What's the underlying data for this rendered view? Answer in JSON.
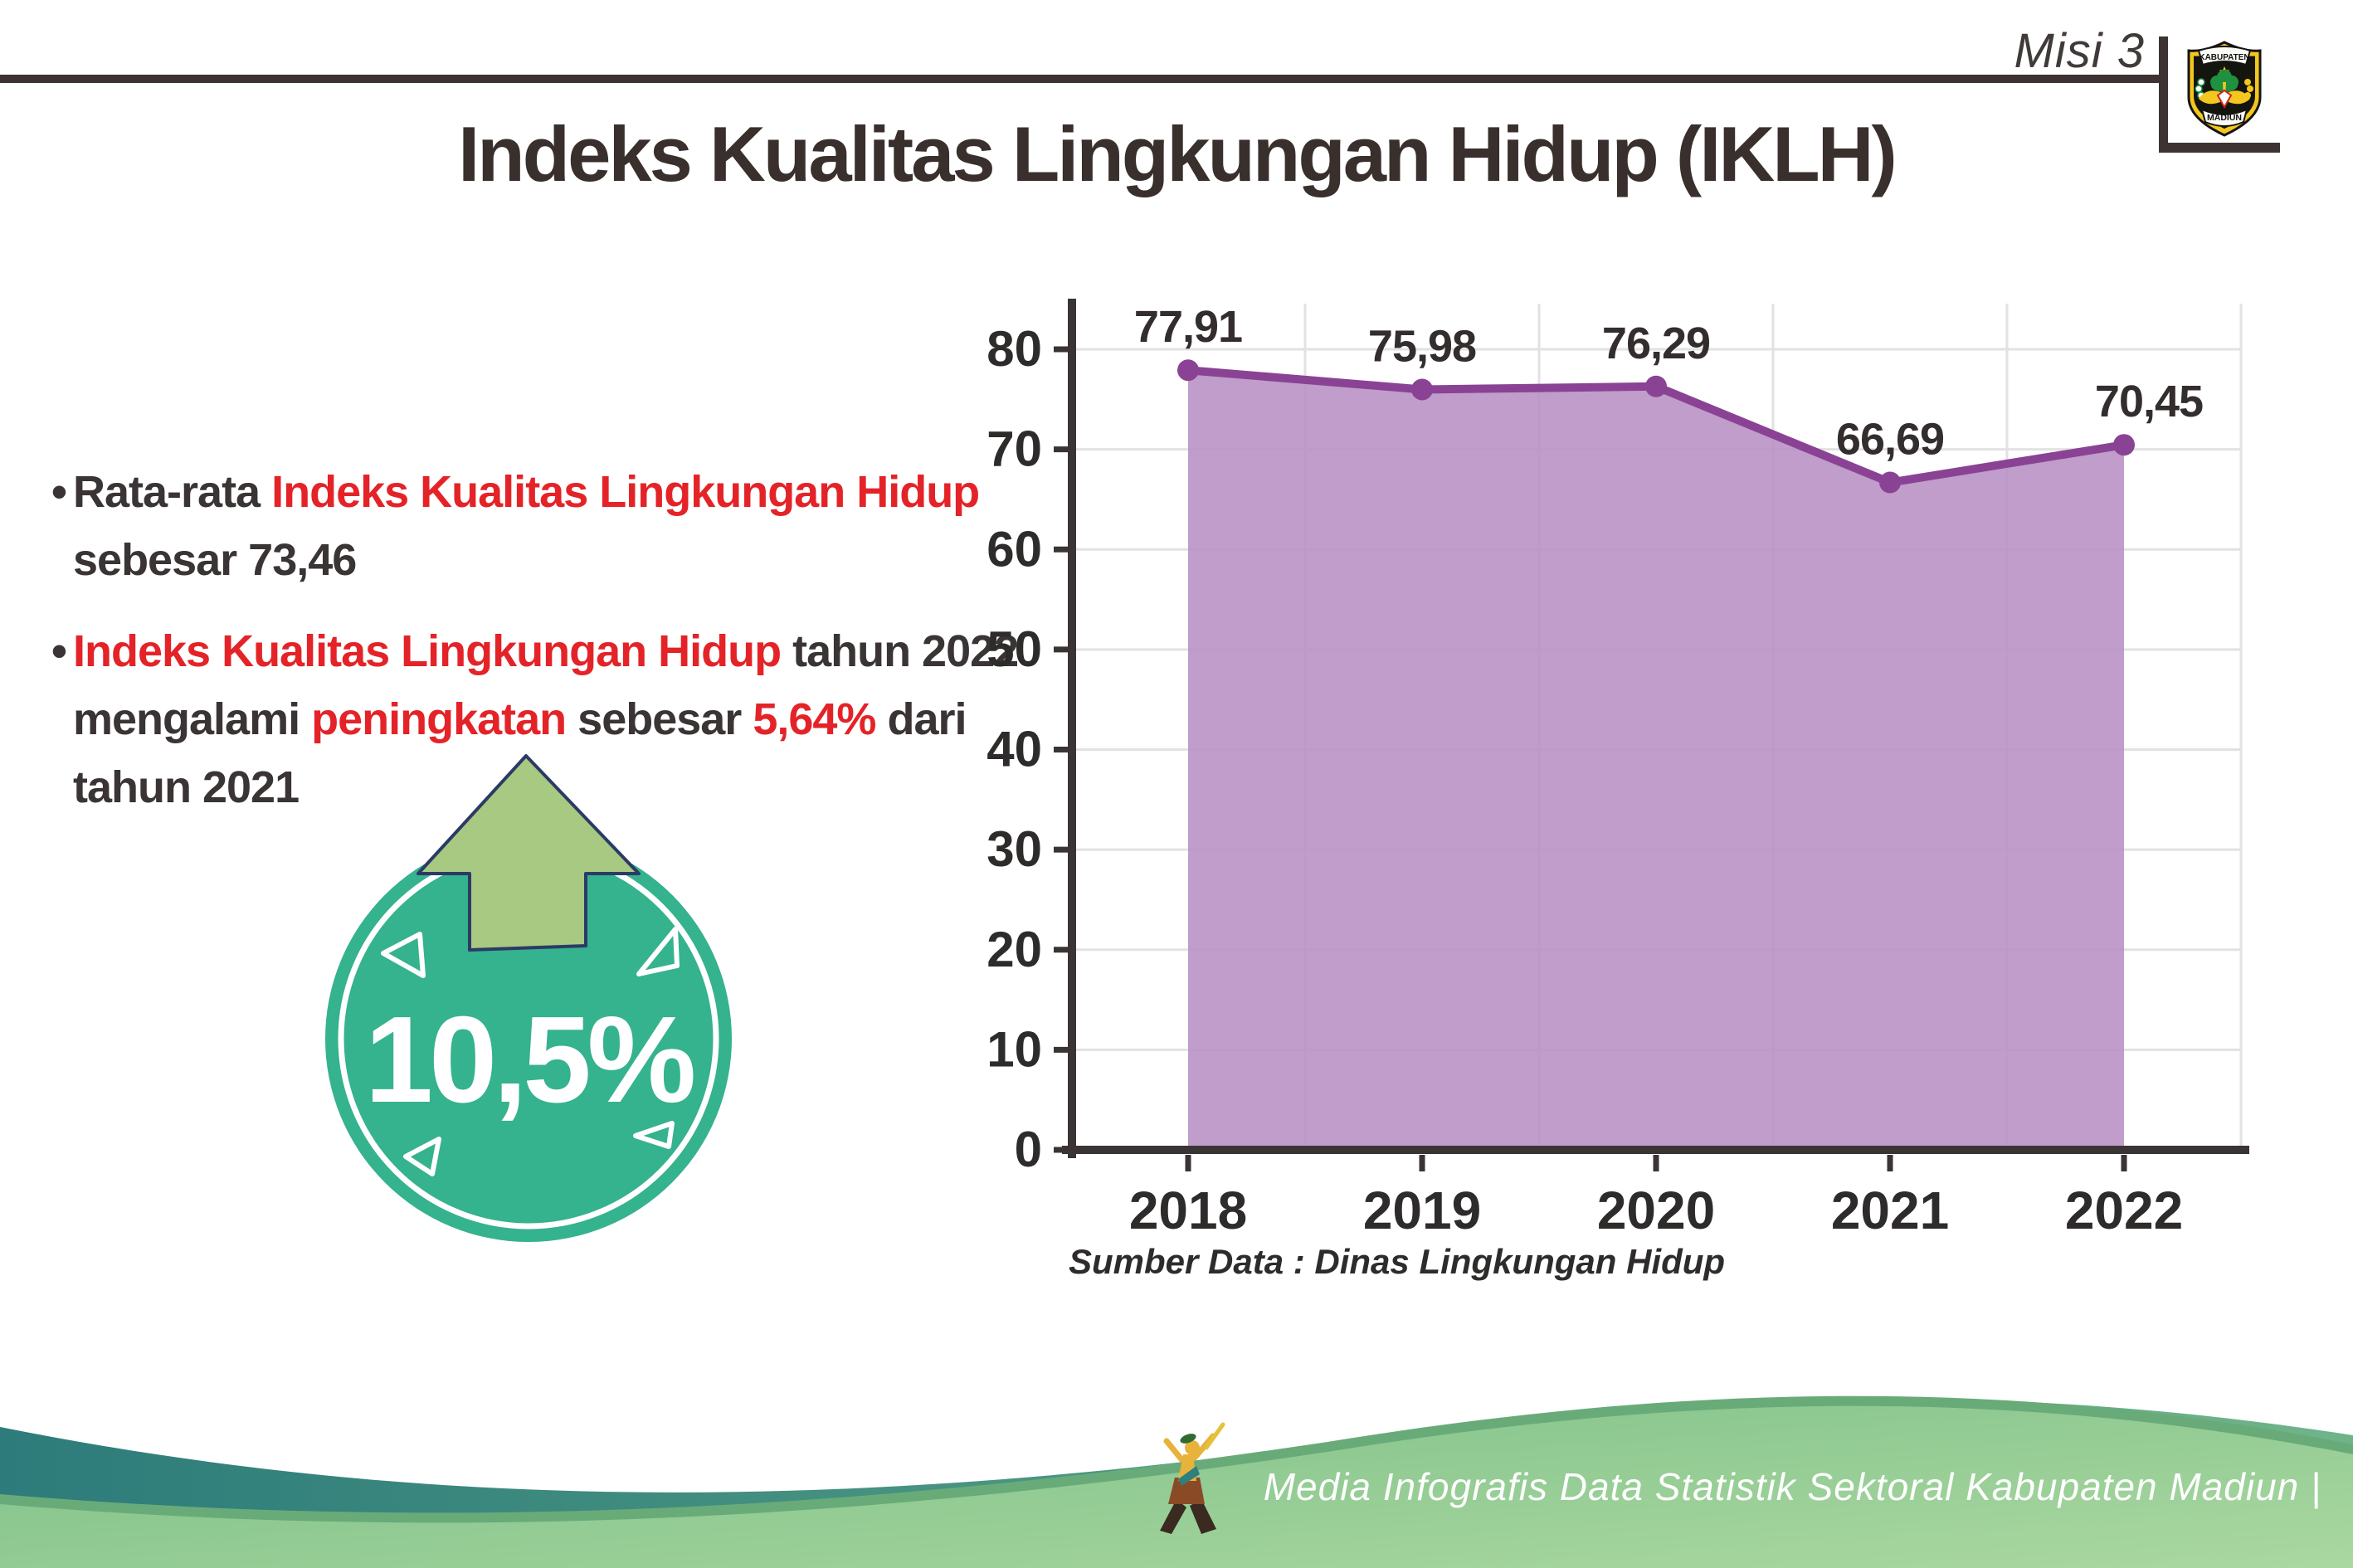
{
  "page": {
    "misi_label": "Misi 3",
    "title": "Indeks Kualitas Lingkungan Hidup (IKLH)"
  },
  "logo": {
    "top_text": "KABUPATEN",
    "bottom_text": "MADIUN"
  },
  "bullets": {
    "marker": "•",
    "b1_lines": [
      [
        {
          "t": "Rata-rata ",
          "c": "dark"
        },
        {
          "t": "Indeks Kualitas Lingkungan Hidup",
          "c": "red"
        }
      ],
      [
        {
          "t": "sebesar 73,46",
          "c": "dark"
        }
      ]
    ],
    "b2_lines": [
      [
        {
          "t": "Indeks Kualitas Lingkungan Hidup",
          "c": "red"
        },
        {
          "t": " tahun 2022",
          "c": "dark"
        }
      ],
      [
        {
          "t": "mengalami ",
          "c": "dark"
        },
        {
          "t": "peningkatan",
          "c": "red"
        },
        {
          "t": " sebesar ",
          "c": "dark"
        },
        {
          "t": "5,64%",
          "c": "red"
        },
        {
          "t": " dari",
          "c": "dark"
        }
      ],
      [
        {
          "t": "tahun 2021",
          "c": "dark"
        }
      ]
    ]
  },
  "badge": {
    "value": "10,5%",
    "circle_color": "#35b28e",
    "arrow_color": "#a7c981",
    "arrow_outline": "#2c3a66"
  },
  "chart_data": {
    "type": "area",
    "title": "",
    "xlabel": "",
    "ylabel": "",
    "categories": [
      "2018",
      "2019",
      "2020",
      "2021",
      "2022"
    ],
    "values": [
      77.91,
      75.98,
      76.29,
      66.69,
      70.45
    ],
    "value_labels": [
      "77,91",
      "75,98",
      "76,29",
      "66,69",
      "70,45"
    ],
    "ylim": [
      0,
      80
    ],
    "yticks": [
      0,
      10,
      20,
      30,
      40,
      50,
      60,
      70,
      80
    ],
    "grid": true,
    "legend": false,
    "line_color": "#8a4394",
    "fill_color": "#b78fc3",
    "label_color": "#332d2d",
    "axis_color": "#3a3434",
    "grid_color": "#e2e2e2",
    "source_note": "Sumber Data : Dinas Lingkungan Hidup"
  },
  "footer": {
    "credit": "Media Infografis Data Statistik Sektoral Kabupaten Madiun |",
    "teal_left": "#2d7c7b",
    "teal_right": "#6fb489",
    "green_left": "#7cbf88",
    "green_right": "#aad8a0",
    "edge_green": "#68ab79"
  }
}
